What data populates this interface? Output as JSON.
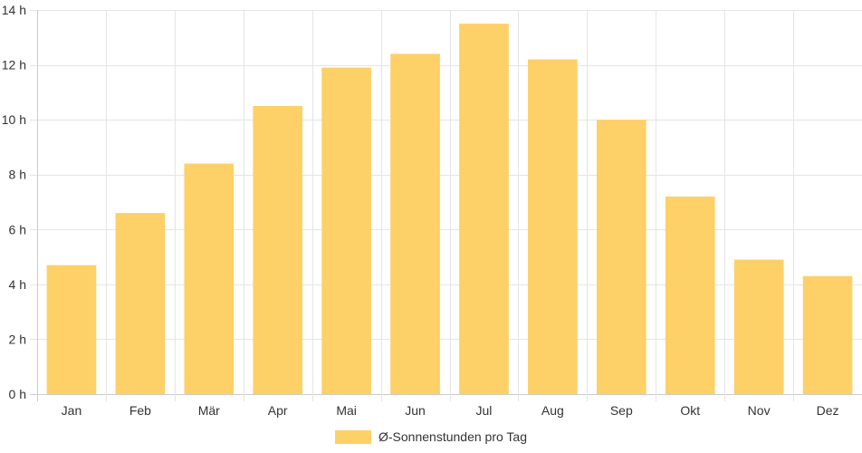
{
  "chart_data": {
    "type": "bar",
    "categories": [
      "Jan",
      "Feb",
      "Mär",
      "Apr",
      "Mai",
      "Jun",
      "Jul",
      "Aug",
      "Sep",
      "Okt",
      "Nov",
      "Dez"
    ],
    "series": [
      {
        "name": "Ø-Sonnenstunden pro Tag",
        "values": [
          4.7,
          6.6,
          8.4,
          10.5,
          11.9,
          12.4,
          13.5,
          12.2,
          10.0,
          7.2,
          4.9,
          4.3
        ],
        "color": "#fdd068"
      }
    ],
    "y_ticks": [
      0,
      2,
      4,
      6,
      8,
      10,
      12,
      14
    ],
    "y_tick_suffix": " h",
    "ylim": [
      0,
      14
    ],
    "title": "",
    "xlabel": "",
    "ylabel": "",
    "grid": true,
    "legend_position": "bottom"
  },
  "colors": {
    "grid": "#e5e5e5",
    "axis": "#cccccc",
    "text": "#333333"
  }
}
